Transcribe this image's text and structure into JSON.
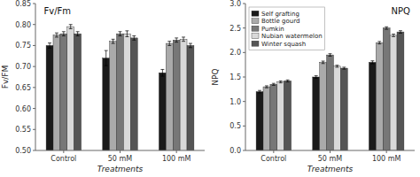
{
  "chart_data": [
    {
      "type": "bar",
      "title": "Fv/Fm",
      "ylabel": "Fv/FM",
      "xlabel": "Treatments",
      "categories": [
        "Control",
        "50 mM",
        "100 mM"
      ],
      "series": [
        {
          "name": "Self grafting",
          "color": "#1a1a1a",
          "values": [
            0.75,
            0.72,
            0.685
          ],
          "errors": [
            0.006,
            0.018,
            0.008
          ]
        },
        {
          "name": "Bottle gourd",
          "color": "#aaaaaa",
          "values": [
            0.775,
            0.76,
            0.755
          ],
          "errors": [
            0.005,
            0.005,
            0.005
          ]
        },
        {
          "name": "Pumkin",
          "color": "#777777",
          "values": [
            0.778,
            0.778,
            0.763
          ],
          "errors": [
            0.005,
            0.005,
            0.005
          ]
        },
        {
          "name": "Nubian watermelon",
          "color": "#d9d9d9",
          "values": [
            0.795,
            0.778,
            0.765
          ],
          "errors": [
            0.005,
            0.007,
            0.005
          ]
        },
        {
          "name": "Winter squash",
          "color": "#555555",
          "values": [
            0.778,
            0.768,
            0.75
          ],
          "errors": [
            0.005,
            0.005,
            0.005
          ]
        }
      ],
      "ylim": [
        0.5,
        0.85
      ],
      "yticks": [
        {
          "value": 0.5,
          "label": "0.50"
        },
        0.55,
        {
          "value": 0.6,
          "label": "0.60"
        },
        0.65,
        {
          "value": 0.7,
          "label": "0.70"
        },
        0.75,
        {
          "value": 0.8,
          "label": "0.80"
        },
        0.85
      ]
    },
    {
      "type": "bar",
      "title": "NPQ",
      "ylabel": "NPQ",
      "xlabel": "Treatments",
      "categories": [
        "Control",
        "50 mM",
        "100 mM"
      ],
      "series": [
        {
          "name": "Self grafting",
          "color": "#1a1a1a",
          "values": [
            1.2,
            1.5,
            1.8
          ],
          "errors": [
            0.025,
            0.025,
            0.03
          ]
        },
        {
          "name": "Bottle gourd",
          "color": "#aaaaaa",
          "values": [
            1.3,
            1.8,
            2.2
          ],
          "errors": [
            0.02,
            0.025,
            0.025
          ]
        },
        {
          "name": "Pumkin",
          "color": "#777777",
          "values": [
            1.35,
            1.95,
            2.5
          ],
          "errors": [
            0.02,
            0.025,
            0.025
          ]
        },
        {
          "name": "Nubian watermelon",
          "color": "#d9d9d9",
          "values": [
            1.4,
            1.72,
            2.35
          ],
          "errors": [
            0.02,
            0.02,
            0.025
          ]
        },
        {
          "name": "Winter squash",
          "color": "#555555",
          "values": [
            1.42,
            1.68,
            2.42
          ],
          "errors": [
            0.02,
            0.02,
            0.025
          ]
        }
      ],
      "ylim": [
        0.0,
        3.0
      ],
      "yticks": [
        {
          "value": 0.0,
          "label": "0.0"
        },
        0.5,
        {
          "value": 1.0,
          "label": "1.0"
        },
        1.5,
        {
          "value": 2.0,
          "label": "2.0"
        },
        2.5,
        {
          "value": 3.0,
          "label": "3.0"
        }
      ],
      "legend": "upper left"
    }
  ]
}
